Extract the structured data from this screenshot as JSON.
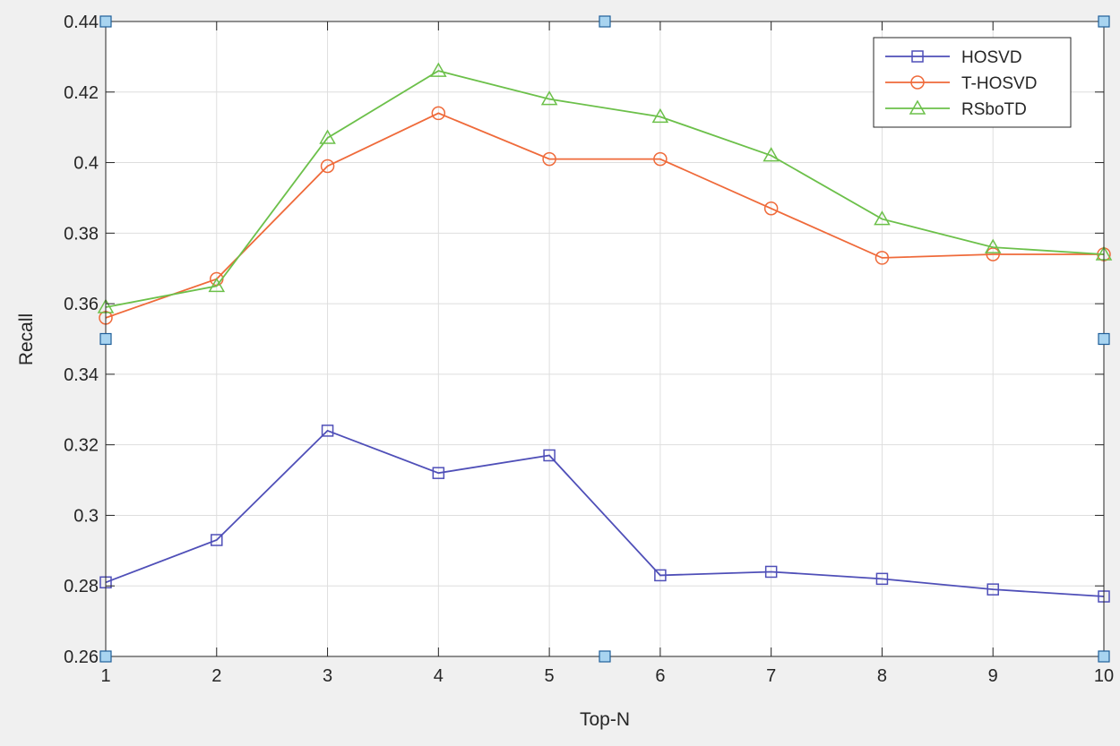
{
  "chart_data": {
    "type": "line",
    "title": "",
    "xlabel": "Top-N",
    "ylabel": "Recall",
    "x": [
      1,
      2,
      3,
      4,
      5,
      6,
      7,
      8,
      9,
      10
    ],
    "xlim": [
      1,
      10
    ],
    "ylim": [
      0.26,
      0.44
    ],
    "xticks": [
      "1",
      "2",
      "3",
      "4",
      "5",
      "6",
      "7",
      "8",
      "9",
      "10"
    ],
    "yticks": [
      "0.26",
      "0.28",
      "0.3",
      "0.32",
      "0.34",
      "0.36",
      "0.38",
      "0.4",
      "0.42",
      "0.44"
    ],
    "grid": true,
    "legend_position": "top-right",
    "series": [
      {
        "name": "HOSVD",
        "color": "#4f4fb8",
        "marker": "square",
        "values": [
          0.281,
          0.293,
          0.324,
          0.312,
          0.317,
          0.283,
          0.284,
          0.282,
          0.279,
          0.277
        ]
      },
      {
        "name": "T-HOSVD",
        "color": "#ef6a3a",
        "marker": "circle",
        "values": [
          0.356,
          0.367,
          0.399,
          0.414,
          0.401,
          0.401,
          0.387,
          0.373,
          0.374,
          0.374
        ]
      },
      {
        "name": "RSboTD",
        "color": "#6cc04a",
        "marker": "triangle",
        "values": [
          0.359,
          0.365,
          0.407,
          0.426,
          0.418,
          0.413,
          0.402,
          0.384,
          0.376,
          0.374
        ]
      }
    ]
  }
}
